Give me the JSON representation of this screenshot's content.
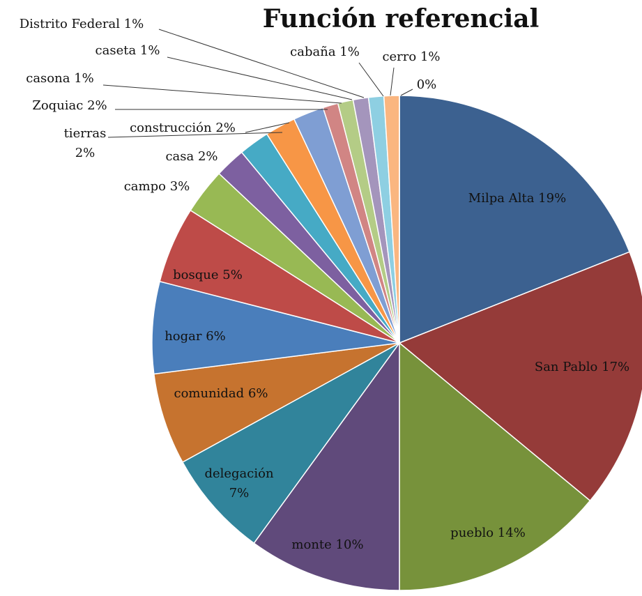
{
  "chart_data": {
    "type": "pie",
    "title": "Función referencial",
    "categories": [
      "Milpa Alta",
      "San Pablo",
      "pueblo",
      "monte",
      "delegación",
      "comunidad",
      "hogar",
      "bosque",
      "campo",
      "casa",
      "tierras",
      "construcción",
      "Zoquiac",
      "casona",
      "caseta",
      "Distrito Federal",
      "cabaña",
      "cerro",
      null
    ],
    "values": [
      19,
      17,
      14,
      10,
      7,
      6,
      6,
      5,
      3,
      2,
      2,
      2,
      2,
      1,
      1,
      1,
      1,
      1,
      0
    ],
    "value_labels": [
      "19%",
      "17%",
      "14%",
      "10%",
      "7%",
      "6%",
      "6%",
      "5%",
      "3%",
      "2%",
      "2%",
      "2%",
      "2%",
      "1%",
      "1%",
      "1%",
      "1%",
      "1%",
      "0%"
    ],
    "colors": [
      "#3c6190",
      "#953b39",
      "#77923b",
      "#604a7b",
      "#31849b",
      "#c6732f",
      "#4a7ebb",
      "#be4b48",
      "#98b954",
      "#7d60a0",
      "#46aac5",
      "#f79646",
      "#7f9ed3",
      "#d18584",
      "#b4cc86",
      "#a495bc",
      "#8ecfe2",
      "#fab680",
      "#f79646"
    ]
  }
}
